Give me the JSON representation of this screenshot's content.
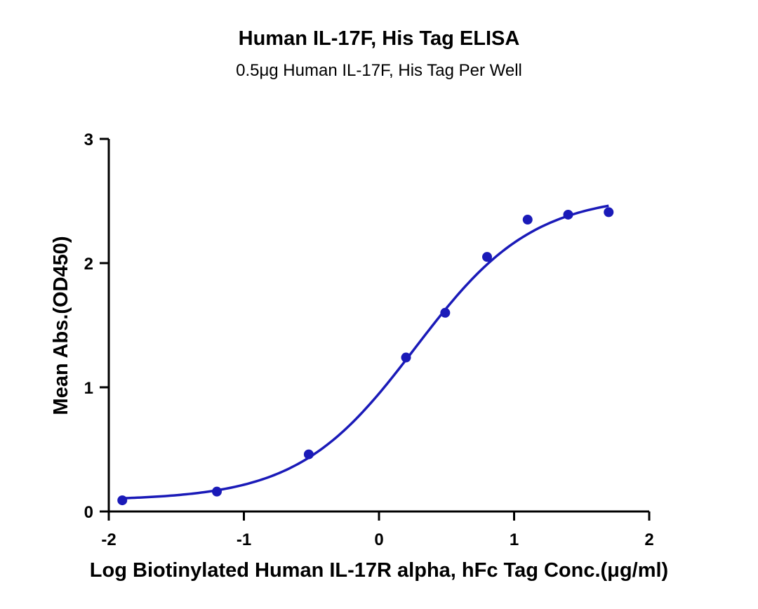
{
  "chart_data": {
    "type": "scatter",
    "title": "Human IL-17F, His Tag ELISA",
    "subtitle": "0.5μg Human IL-17F, His Tag Per Well",
    "xlabel": "Log Biotinylated Human IL-17R alpha, hFc Tag Conc.(μg/ml)",
    "ylabel": "Mean Abs.(OD450)",
    "xlim": [
      -2,
      2
    ],
    "ylim": [
      0,
      3
    ],
    "x_ticks": [
      "-2",
      "-1",
      "0",
      "1",
      "2"
    ],
    "y_ticks": [
      "0",
      "1",
      "2",
      "3"
    ],
    "grid": false,
    "point_color": "#1a1ab8",
    "curve_color": "#1a1ab8",
    "series": [
      {
        "points": [
          {
            "x": -1.9,
            "y": 0.09
          },
          {
            "x": -1.2,
            "y": 0.16
          },
          {
            "x": -0.52,
            "y": 0.46
          },
          {
            "x": 0.2,
            "y": 1.24
          },
          {
            "x": 0.49,
            "y": 1.6
          },
          {
            "x": 0.8,
            "y": 2.05
          },
          {
            "x": 1.1,
            "y": 2.35
          },
          {
            "x": 1.4,
            "y": 2.39
          },
          {
            "x": 1.7,
            "y": 2.41
          }
        ]
      }
    ]
  }
}
